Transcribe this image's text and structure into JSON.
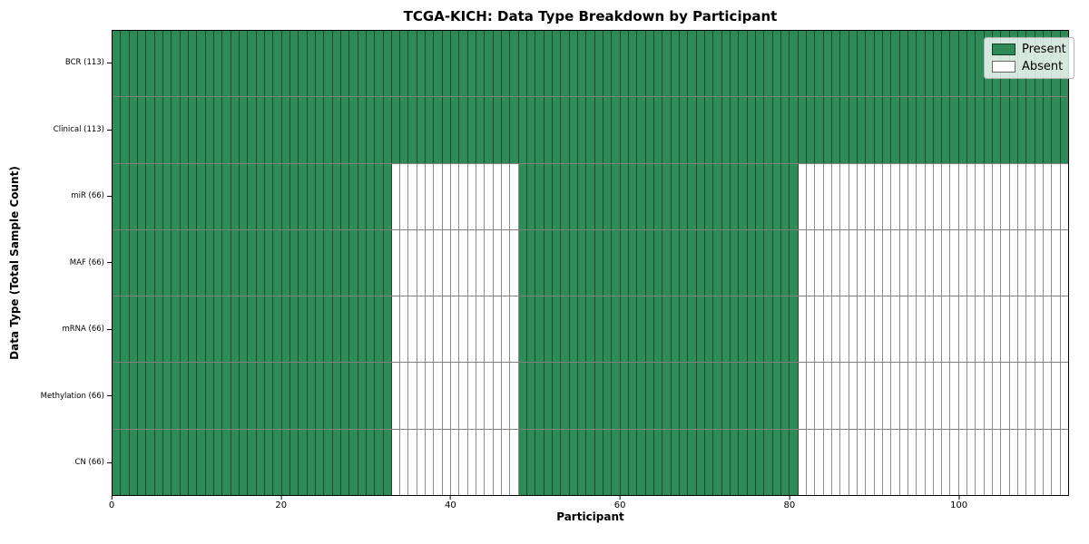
{
  "chart_data": {
    "type": "heatmap",
    "title": "TCGA-KICH: Data Type Breakdown by Participant",
    "xlabel": "Participant",
    "ylabel": "Data Type (Total Sample Count)",
    "x_range": [
      0,
      113
    ],
    "n_participants": 113,
    "x_ticks": [
      0,
      20,
      40,
      60,
      80,
      100
    ],
    "grid": false,
    "legend_position": "upper right",
    "rows": [
      {
        "label": "BCR (113)",
        "data_type": "BCR",
        "total_samples": 113,
        "present_ranges": [
          [
            0,
            113
          ]
        ]
      },
      {
        "label": "Clinical (113)",
        "data_type": "Clinical",
        "total_samples": 113,
        "present_ranges": [
          [
            0,
            113
          ]
        ]
      },
      {
        "label": "miR (66)",
        "data_type": "miR",
        "total_samples": 66,
        "present_ranges": [
          [
            0,
            33
          ],
          [
            48,
            81
          ]
        ]
      },
      {
        "label": "MAF (66)",
        "data_type": "MAF",
        "total_samples": 66,
        "present_ranges": [
          [
            0,
            33
          ],
          [
            48,
            81
          ]
        ]
      },
      {
        "label": "mRNA (66)",
        "data_type": "mRNA",
        "total_samples": 66,
        "present_ranges": [
          [
            0,
            33
          ],
          [
            48,
            81
          ]
        ]
      },
      {
        "label": "Methylation (66)",
        "data_type": "Methylation",
        "total_samples": 66,
        "present_ranges": [
          [
            0,
            33
          ],
          [
            48,
            81
          ]
        ]
      },
      {
        "label": "CN (66)",
        "data_type": "CN",
        "total_samples": 66,
        "present_ranges": [
          [
            0,
            33
          ],
          [
            48,
            81
          ]
        ]
      }
    ],
    "legend": [
      {
        "label": "Present",
        "color": "#2e8b57"
      },
      {
        "label": "Absent",
        "color": "#ffffff"
      }
    ],
    "colors": {
      "present": "#2e8b57",
      "absent": "#ffffff",
      "cell_edge": "rgba(0,0,0,0.45)",
      "spine": "#000000"
    }
  }
}
